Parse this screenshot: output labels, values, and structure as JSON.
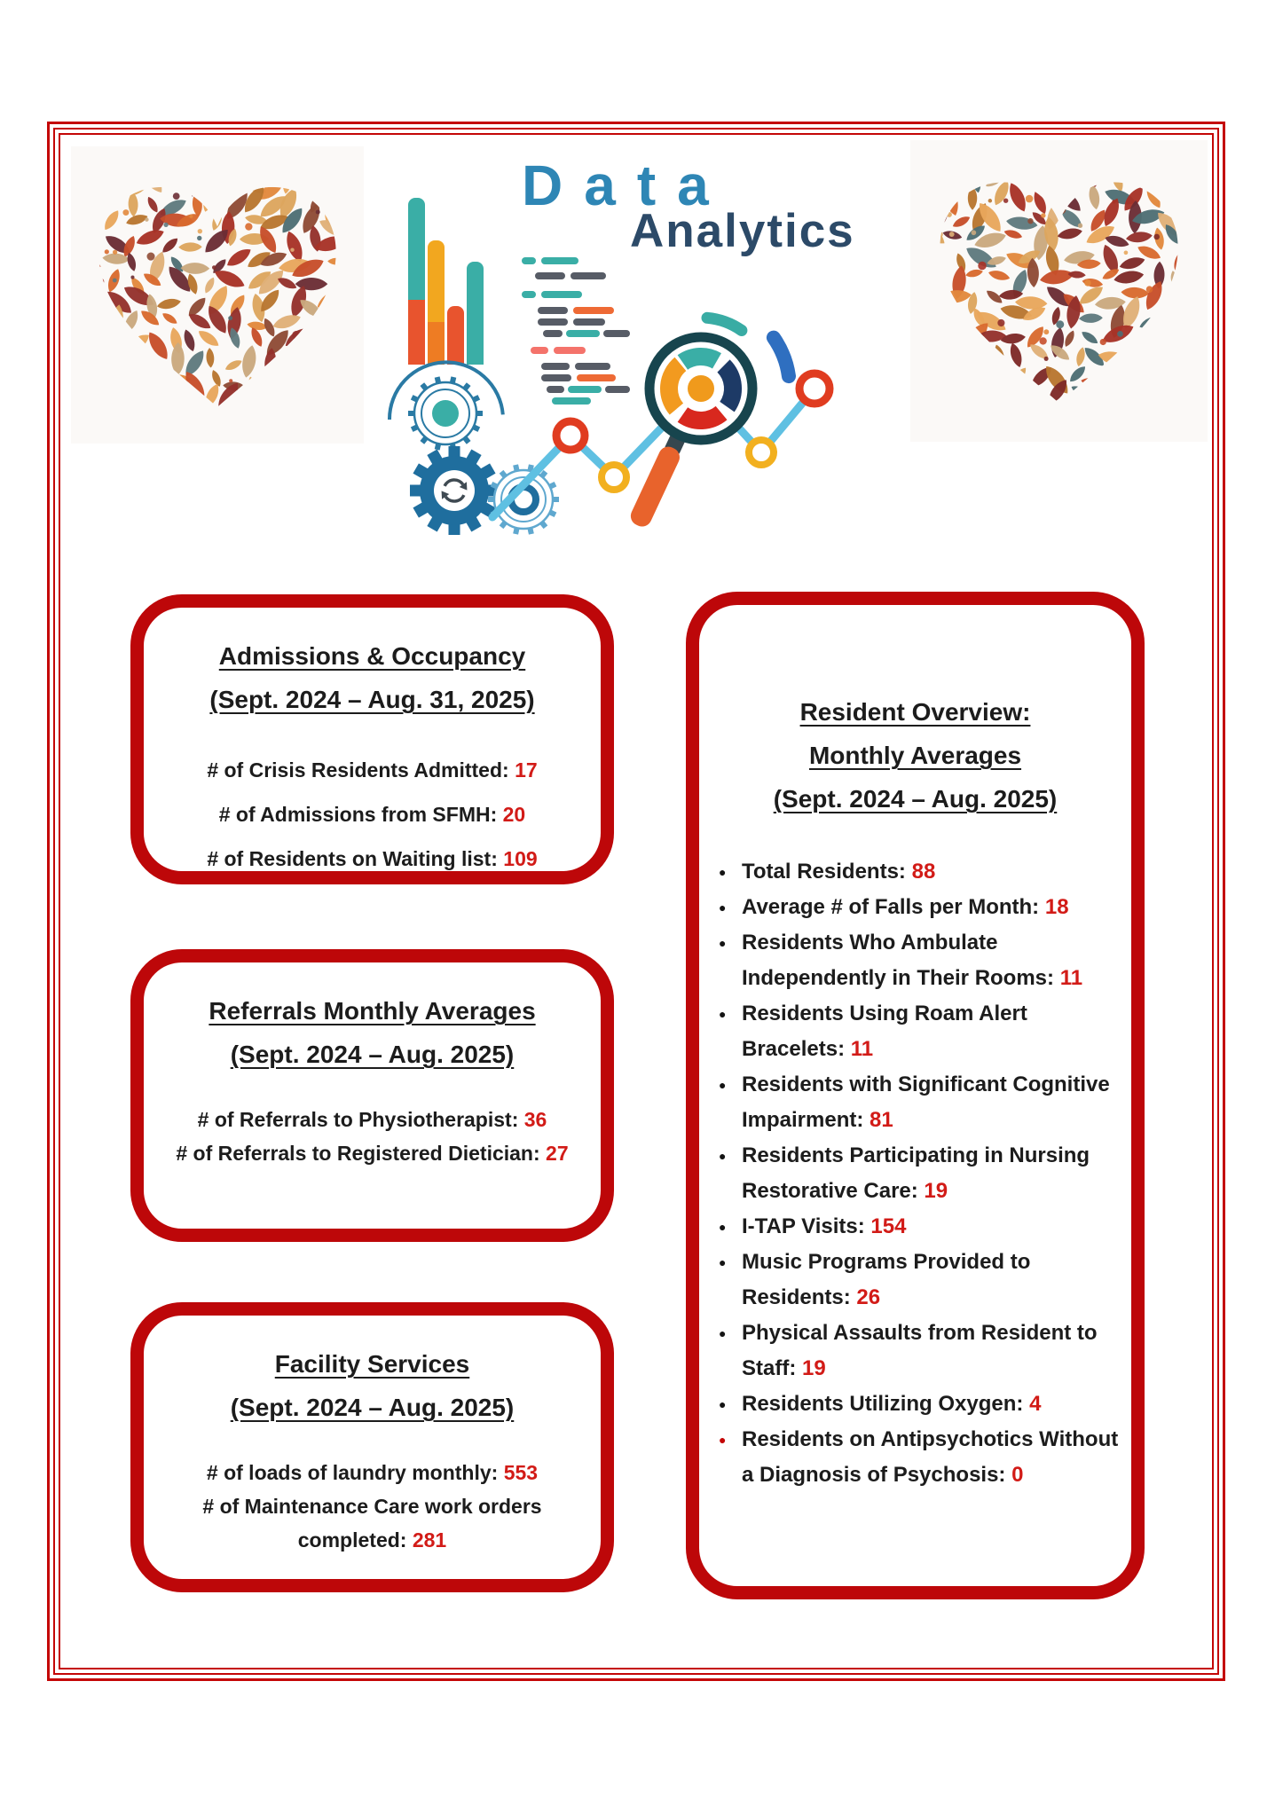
{
  "hero": {
    "word1": "Data",
    "word2": "Analytics"
  },
  "colors": {
    "frame_red": "#c40606",
    "box_border_red": "#bd0709",
    "value_red": "#d21b17",
    "hero_blue": "#2e86b5",
    "hero_navy": "#2c4a68"
  },
  "icons": {
    "left_decoration": "autumn-leaves-heart",
    "right_decoration": "autumn-leaves-heart",
    "hero_art": "bar-chart-gears-magnifier-line-graph"
  },
  "boxes": [
    {
      "title": "Admissions & Occupancy",
      "subtitle": "(Sept. 2024 – Aug. 31, 2025)",
      "lines": [
        {
          "label": "# of Crisis Residents Admitted:",
          "value": "17"
        },
        {
          "label": "# of Admissions from SFMH:",
          "value": "20"
        },
        {
          "label": "# of Residents on Waiting list:",
          "value": "109"
        }
      ]
    },
    {
      "title": "Referrals Monthly Averages",
      "subtitle": "(Sept. 2024 – Aug. 2025)",
      "lines": [
        {
          "label": "# of Referrals to Physiotherapist:",
          "value": "36"
        },
        {
          "label": "# of Referrals to Registered Dietician:",
          "value": "27"
        }
      ]
    },
    {
      "title": "Facility Services",
      "subtitle": "(Sept. 2024 – Aug. 2025)",
      "lines": [
        {
          "label": "# of loads of laundry monthly:",
          "value": "553"
        },
        {
          "label": "# of Maintenance Care work orders completed:",
          "value": "281"
        }
      ]
    }
  ],
  "resident_overview": {
    "title_line1": "Resident Overview:",
    "title_line2": "Monthly Averages",
    "title_line3": "(Sept. 2024 – Aug. 2025)",
    "bullets": [
      {
        "label": "Total Residents:",
        "value": "88",
        "marker": "black"
      },
      {
        "label": "Average # of Falls per Month:",
        "value": "18",
        "marker": "black"
      },
      {
        "label": "Residents Who Ambulate Independently in Their Rooms:",
        "value": "11",
        "marker": "black"
      },
      {
        "label": "Residents Using Roam Alert Bracelets:",
        "value": "11",
        "marker": "black"
      },
      {
        "label": "Residents with Significant Cognitive Impairment:",
        "value": "81",
        "marker": "black"
      },
      {
        "label": "Residents Participating in Nursing Restorative Care:",
        "value": "19",
        "marker": "black"
      },
      {
        "label": "I-TAP Visits:",
        "value": "154",
        "marker": "black"
      },
      {
        "label": "Music Programs Provided to Residents:",
        "value": "26",
        "marker": "black"
      },
      {
        "label": "Physical Assaults from Resident to Staff:",
        "value": "19",
        "marker": "black"
      },
      {
        "label": "Residents Utilizing Oxygen:",
        "value": "4",
        "marker": "black"
      },
      {
        "label": "Residents on Antipsychotics Without a Diagnosis of Psychosis:",
        "value": "0",
        "marker": "red"
      }
    ]
  }
}
